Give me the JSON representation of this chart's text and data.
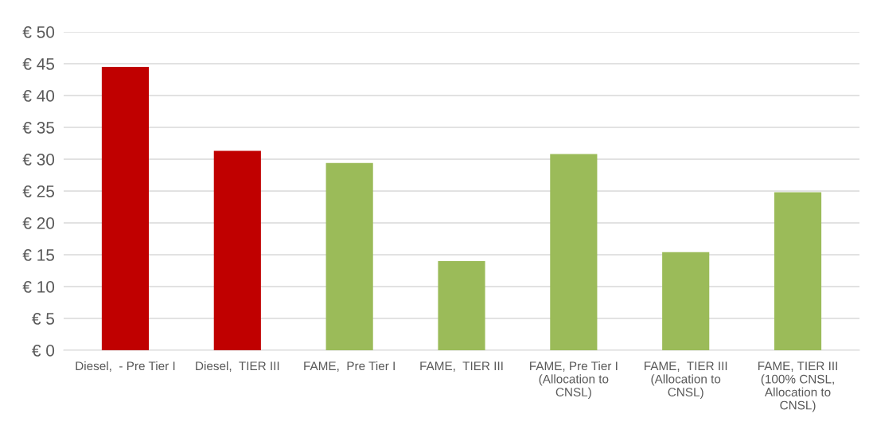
{
  "chart_data": {
    "type": "bar",
    "categories": [
      "Diesel,  - Pre Tier I",
      "Diesel,  TIER III",
      "FAME,  Pre Tier I",
      "FAME,  TIER III",
      "FAME, Pre Tier I\n(Allocation to\nCNSL)",
      "FAME,  TIER III\n(Allocation to\nCNSL)",
      "FAME, TIER III\n(100% CNSL,\nAllocation to\nCNSL)"
    ],
    "values": [
      44.5,
      31.3,
      29.4,
      14.0,
      30.8,
      15.4,
      24.8
    ],
    "colors": [
      "#c00000",
      "#c00000",
      "#9bbb59",
      "#9bbb59",
      "#9bbb59",
      "#9bbb59",
      "#9bbb59"
    ],
    "ylim": [
      0,
      50
    ],
    "yticks": [
      {
        "value": 0,
        "label": "€ 0"
      },
      {
        "value": 5,
        "label": "€ 5"
      },
      {
        "value": 10,
        "label": "€ 10"
      },
      {
        "value": 15,
        "label": "€ 15"
      },
      {
        "value": 20,
        "label": "€ 20"
      },
      {
        "value": 25,
        "label": "€ 25"
      },
      {
        "value": 30,
        "label": "€ 30"
      },
      {
        "value": 35,
        "label": "€ 35"
      },
      {
        "value": 40,
        "label": "€ 40"
      },
      {
        "value": 45,
        "label": "€ 45"
      },
      {
        "value": 50,
        "label": "€ 50"
      }
    ],
    "grid": "y",
    "legend": false
  }
}
